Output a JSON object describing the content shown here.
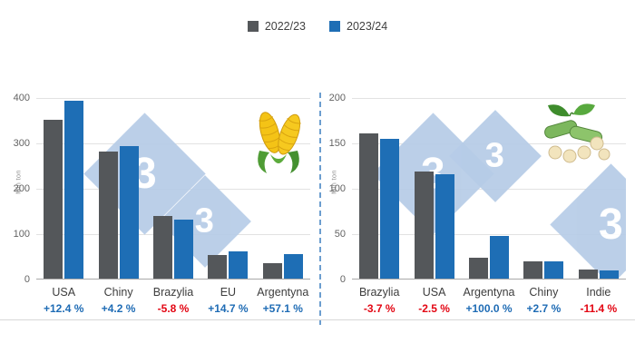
{
  "legend": [
    {
      "label": "2022/23",
      "color": "#54575a"
    },
    {
      "label": "2023/24",
      "color": "#1e6eb5"
    }
  ],
  "watermark": {
    "glyph": "3"
  },
  "palette": {
    "series1": "#54575a",
    "series2": "#1e6eb5",
    "positive": "#1f6cb5",
    "negative": "#e30613"
  },
  "chart_data": [
    {
      "type": "bar",
      "ylabel": "Mln ton",
      "ylim": [
        0,
        400
      ],
      "yticks": [
        0,
        100,
        200,
        300,
        400
      ],
      "grid": true,
      "legend_position": "top-center",
      "categories": [
        "USA",
        "Chiny",
        "Brazylia",
        "EU",
        "Argentyna"
      ],
      "series": [
        {
          "name": "2022/23",
          "values": [
            350,
            281,
            138,
            52,
            34
          ]
        },
        {
          "name": "2023/24",
          "values": [
            393,
            293,
            130,
            60,
            54
          ]
        }
      ],
      "changes": [
        {
          "label": "+12.4 %",
          "direction": "up"
        },
        {
          "label": "+4.2 %",
          "direction": "up"
        },
        {
          "label": "-5.8 %",
          "direction": "down"
        },
        {
          "label": "+14.7 %",
          "direction": "up"
        },
        {
          "label": "+57.1 %",
          "direction": "up"
        }
      ],
      "icon": "corn-icon"
    },
    {
      "type": "bar",
      "ylabel": "Mln ton",
      "ylim": [
        0,
        200
      ],
      "yticks": [
        0,
        50,
        100,
        150,
        200
      ],
      "grid": true,
      "legend_position": "top-center",
      "categories": [
        "Brazylia",
        "USA",
        "Argentyna",
        "Chiny",
        "Indie"
      ],
      "series": [
        {
          "name": "2022/23",
          "values": [
            160,
            118,
            23.5,
            19,
            10.5
          ]
        },
        {
          "name": "2023/24",
          "values": [
            154,
            115,
            47,
            19.5,
            9.3
          ]
        }
      ],
      "changes": [
        {
          "label": "-3.7 %",
          "direction": "down"
        },
        {
          "label": "-2.5 %",
          "direction": "down"
        },
        {
          "label": "+100.0 %",
          "direction": "up"
        },
        {
          "label": "+2.7 %",
          "direction": "up"
        },
        {
          "label": "-11.4 %",
          "direction": "down"
        }
      ],
      "icon": "soybean-icon"
    }
  ]
}
